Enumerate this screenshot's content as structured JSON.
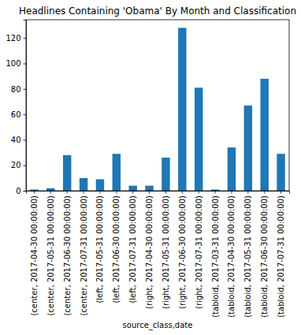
{
  "chart_data": {
    "type": "bar",
    "title": "Headlines Containing 'Obama' By Month and Classification",
    "x_label": "source_class,date",
    "categories": [
      "(center, 2017-04-30 00:00:00)",
      "(center, 2017-05-31 00:00:00)",
      "(center, 2017-06-30 00:00:00)",
      "(center, 2017-07-31 00:00:00)",
      "(left, 2017-05-31 00:00:00)",
      "(left, 2017-06-30 00:00:00)",
      "(left, 2017-07-31 00:00:00)",
      "(right, 2017-04-30 00:00:00)",
      "(right, 2017-05-31 00:00:00)",
      "(right, 2017-06-30 00:00:00)",
      "(right, 2017-07-31 00:00:00)",
      "(tabloid, 2017-03-31 00:00:00)",
      "(tabloid, 2017-04-30 00:00:00)",
      "(tabloid, 2017-05-31 00:00:00)",
      "(tabloid, 2017-06-30 00:00:00)",
      "(tabloid, 2017-07-31 00:00:00)"
    ],
    "values": [
      1,
      2,
      28,
      10,
      9,
      29,
      4,
      4,
      26,
      128,
      81,
      1,
      34,
      67,
      88,
      29
    ],
    "color": "#1f77b4",
    "ylim": [
      0,
      134.4
    ],
    "yticks": [
      0,
      20,
      40,
      60,
      80,
      100,
      120
    ],
    "grid": false
  }
}
